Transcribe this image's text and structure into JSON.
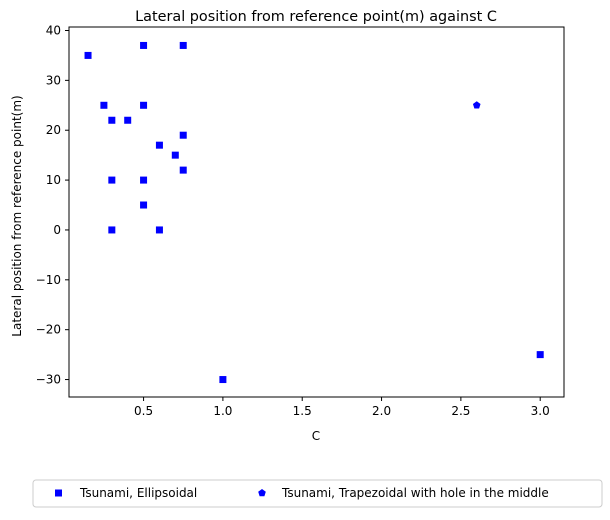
{
  "chart_data": {
    "type": "scatter",
    "title": "Lateral position from reference point(m) against C",
    "xlabel": "C",
    "ylabel": "Lateral position from reference point(m)",
    "xlim": [
      0.03,
      3.15
    ],
    "ylim": [
      -33.5,
      40.7
    ],
    "xticks": [
      0.5,
      1.0,
      1.5,
      2.0,
      2.5,
      3.0
    ],
    "xtick_labels": [
      "0.5",
      "1.0",
      "1.5",
      "2.0",
      "2.5",
      "3.0"
    ],
    "yticks": [
      -30,
      -20,
      -10,
      0,
      10,
      20,
      30,
      40
    ],
    "ytick_labels": [
      "−30",
      "−20",
      "−10",
      "0",
      "10",
      "20",
      "30",
      "40"
    ],
    "grid": false,
    "legend_position": "below plot, centered, horizontal",
    "series": [
      {
        "name": "Tsunami, Ellipsoidal",
        "marker": "square",
        "color": "#0000ff",
        "points": [
          [
            0.15,
            35
          ],
          [
            0.5,
            37
          ],
          [
            0.75,
            37
          ],
          [
            0.25,
            25
          ],
          [
            0.5,
            25
          ],
          [
            0.3,
            22
          ],
          [
            0.4,
            22
          ],
          [
            0.75,
            19
          ],
          [
            0.6,
            17
          ],
          [
            0.7,
            15
          ],
          [
            0.75,
            12
          ],
          [
            0.3,
            10
          ],
          [
            0.5,
            10
          ],
          [
            0.5,
            5
          ],
          [
            0.3,
            0
          ],
          [
            0.6,
            0
          ],
          [
            1.0,
            -30
          ],
          [
            3.0,
            -25
          ]
        ]
      },
      {
        "name": "Tsunami, Trapezoidal with hole in the middle",
        "marker": "pentagon",
        "color": "#0000ff",
        "points": [
          [
            2.6,
            25
          ]
        ]
      }
    ]
  }
}
